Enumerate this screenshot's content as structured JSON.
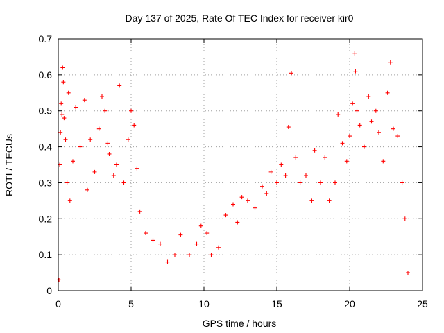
{
  "chart_data": {
    "type": "scatter",
    "title": "Day 137 of 2025, Rate Of TEC Index for receiver kir0",
    "xlabel": "GPS time / hours",
    "ylabel": "ROTI / TECUs",
    "xlim": [
      0,
      25
    ],
    "ylim": [
      0,
      0.7
    ],
    "x_ticks": [
      "0",
      "5",
      "10",
      "15",
      "20",
      "25"
    ],
    "y_ticks": [
      "0",
      "0.1",
      "0.2",
      "0.3",
      "0.4",
      "0.5",
      "0.6",
      "0.7"
    ],
    "grid": true,
    "marker": "+",
    "color": "#ff0000",
    "series": [
      {
        "points": [
          [
            0.05,
            0.03
          ],
          [
            0.1,
            0.35
          ],
          [
            0.15,
            0.44
          ],
          [
            0.2,
            0.52
          ],
          [
            0.25,
            0.49
          ],
          [
            0.3,
            0.62
          ],
          [
            0.35,
            0.58
          ],
          [
            0.4,
            0.48
          ],
          [
            0.5,
            0.42
          ],
          [
            0.6,
            0.3
          ],
          [
            0.7,
            0.55
          ],
          [
            0.8,
            0.25
          ],
          [
            1.0,
            0.36
          ],
          [
            1.2,
            0.51
          ],
          [
            1.5,
            0.4
          ],
          [
            1.8,
            0.53
          ],
          [
            2.0,
            0.28
          ],
          [
            2.2,
            0.42
          ],
          [
            2.5,
            0.33
          ],
          [
            2.8,
            0.45
          ],
          [
            3.0,
            0.54
          ],
          [
            3.2,
            0.5
          ],
          [
            3.4,
            0.41
          ],
          [
            3.5,
            0.38
          ],
          [
            3.8,
            0.32
          ],
          [
            4.0,
            0.35
          ],
          [
            4.2,
            0.57
          ],
          [
            4.5,
            0.3
          ],
          [
            4.8,
            0.42
          ],
          [
            5.0,
            0.5
          ],
          [
            5.2,
            0.46
          ],
          [
            5.4,
            0.34
          ],
          [
            5.6,
            0.22
          ],
          [
            6.0,
            0.16
          ],
          [
            6.5,
            0.14
          ],
          [
            7.0,
            0.13
          ],
          [
            7.5,
            0.08
          ],
          [
            8.0,
            0.1
          ],
          [
            8.4,
            0.155
          ],
          [
            9.0,
            0.1
          ],
          [
            9.5,
            0.13
          ],
          [
            9.8,
            0.18
          ],
          [
            10.2,
            0.16
          ],
          [
            10.5,
            0.1
          ],
          [
            11.0,
            0.12
          ],
          [
            11.5,
            0.21
          ],
          [
            12.0,
            0.24
          ],
          [
            12.3,
            0.19
          ],
          [
            12.6,
            0.26
          ],
          [
            13.0,
            0.25
          ],
          [
            13.5,
            0.23
          ],
          [
            14.0,
            0.29
          ],
          [
            14.3,
            0.27
          ],
          [
            14.6,
            0.33
          ],
          [
            15.0,
            0.3
          ],
          [
            15.3,
            0.35
          ],
          [
            15.6,
            0.32
          ],
          [
            15.8,
            0.455
          ],
          [
            16.0,
            0.605
          ],
          [
            16.3,
            0.37
          ],
          [
            16.6,
            0.3
          ],
          [
            17.0,
            0.32
          ],
          [
            17.4,
            0.25
          ],
          [
            17.6,
            0.39
          ],
          [
            18.0,
            0.3
          ],
          [
            18.3,
            0.37
          ],
          [
            18.6,
            0.25
          ],
          [
            19.0,
            0.3
          ],
          [
            19.2,
            0.49
          ],
          [
            19.5,
            0.41
          ],
          [
            19.8,
            0.36
          ],
          [
            20.0,
            0.43
          ],
          [
            20.2,
            0.52
          ],
          [
            20.35,
            0.66
          ],
          [
            20.4,
            0.61
          ],
          [
            20.5,
            0.5
          ],
          [
            20.7,
            0.46
          ],
          [
            21.0,
            0.4
          ],
          [
            21.3,
            0.54
          ],
          [
            21.5,
            0.47
          ],
          [
            21.8,
            0.5
          ],
          [
            22.0,
            0.44
          ],
          [
            22.3,
            0.36
          ],
          [
            22.6,
            0.55
          ],
          [
            22.8,
            0.635
          ],
          [
            23.0,
            0.45
          ],
          [
            23.3,
            0.43
          ],
          [
            23.6,
            0.3
          ],
          [
            23.8,
            0.2
          ],
          [
            24.0,
            0.05
          ]
        ]
      }
    ]
  }
}
